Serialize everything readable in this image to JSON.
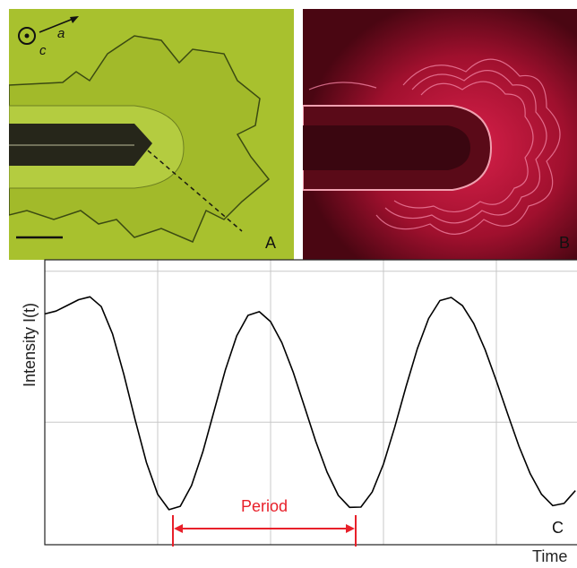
{
  "panel_a": {
    "label": "A",
    "axis_labels": [
      "c",
      "a"
    ]
  },
  "panel_b": {
    "label": "B"
  },
  "chart_data": {
    "type": "line",
    "panel_label": "C",
    "x_label": "Time",
    "y_label": "Intensity I(t)",
    "annotation": "Period",
    "x": [
      0,
      0.1,
      0.2,
      0.3,
      0.4,
      0.5,
      0.6,
      0.7,
      0.8,
      0.9,
      1.0,
      1.1,
      1.2,
      1.3,
      1.4,
      1.5,
      1.6,
      1.7,
      1.8,
      1.9,
      2.0,
      2.1,
      2.2,
      2.3,
      2.4,
      2.5,
      2.6,
      2.7,
      2.8,
      2.9,
      3.0,
      3.1,
      3.2,
      3.3,
      3.4,
      3.5,
      3.6,
      3.7,
      3.8,
      3.9,
      4.0,
      4.1,
      4.2,
      4.3,
      4.4,
      4.5,
      4.6,
      4.7
    ],
    "values": [
      8.1,
      8.2,
      8.4,
      8.6,
      8.7,
      8.36,
      7.4,
      5.98,
      4.39,
      2.89,
      1.77,
      1.23,
      1.35,
      2.08,
      3.26,
      4.7,
      6.14,
      7.33,
      8.05,
      8.18,
      7.83,
      7.09,
      6.06,
      4.85,
      3.63,
      2.55,
      1.73,
      1.31,
      1.32,
      1.85,
      2.83,
      4.13,
      5.55,
      6.88,
      7.94,
      8.57,
      8.68,
      8.39,
      7.76,
      6.85,
      5.75,
      4.59,
      3.46,
      2.49,
      1.77,
      1.37,
      1.45,
      1.9
    ],
    "color": "#000000",
    "xlim": [
      0,
      5
    ],
    "xticks": [
      1,
      2,
      3,
      4
    ],
    "ylim": [
      0,
      10
    ],
    "yticks": [
      4.3,
      9.6
    ],
    "grid": true
  }
}
